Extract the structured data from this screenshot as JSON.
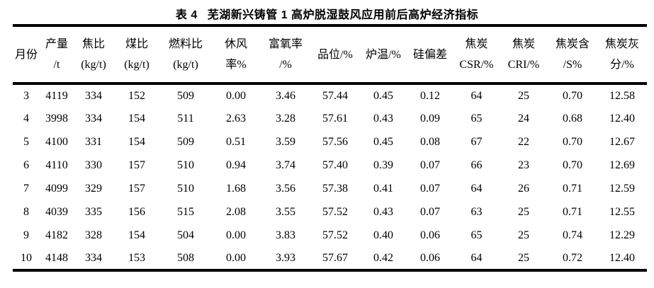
{
  "caption": {
    "label": "表 4",
    "title": "芜湖新兴铸管 1 高炉脱湿鼓风应用前后高炉经济指标"
  },
  "table": {
    "columns": [
      {
        "line1": "月份",
        "line2": ""
      },
      {
        "line1": "产量",
        "line2": "/t"
      },
      {
        "line1": "焦比",
        "line2": "(kg/t)"
      },
      {
        "line1": "煤比",
        "line2": "(kg/t)"
      },
      {
        "line1": "燃料比",
        "line2": "(kg/t)"
      },
      {
        "line1": "休风",
        "line2": "率%"
      },
      {
        "line1": "富氧率",
        "line2": "/%"
      },
      {
        "line1": "品位/%",
        "line2": ""
      },
      {
        "line1": "炉温/%",
        "line2": ""
      },
      {
        "line1": "硅偏差",
        "line2": ""
      },
      {
        "line1": "焦炭",
        "line2": "CSR/%"
      },
      {
        "line1": "焦炭",
        "line2": "CRI/%"
      },
      {
        "line1": "焦炭含",
        "line2": "/S%"
      },
      {
        "line1": "焦炭灰",
        "line2": "分/%"
      }
    ],
    "rows": [
      [
        "3",
        "4119",
        "334",
        "152",
        "509",
        "0.00",
        "3.46",
        "57.44",
        "0.45",
        "0.12",
        "64",
        "25",
        "0.70",
        "12.58"
      ],
      [
        "4",
        "3998",
        "334",
        "154",
        "511",
        "2.63",
        "3.28",
        "57.61",
        "0.43",
        "0.09",
        "65",
        "24",
        "0.68",
        "12.40"
      ],
      [
        "5",
        "4100",
        "331",
        "154",
        "509",
        "0.51",
        "3.59",
        "57.56",
        "0.45",
        "0.08",
        "67",
        "22",
        "0.70",
        "12.67"
      ],
      [
        "6",
        "4110",
        "330",
        "157",
        "510",
        "0.94",
        "3.74",
        "57.40",
        "0.39",
        "0.07",
        "66",
        "23",
        "0.70",
        "12.69"
      ],
      [
        "7",
        "4099",
        "329",
        "157",
        "510",
        "1.68",
        "3.56",
        "57.38",
        "0.41",
        "0.07",
        "64",
        "26",
        "0.71",
        "12.59"
      ],
      [
        "8",
        "4039",
        "335",
        "156",
        "515",
        "2.08",
        "3.55",
        "57.52",
        "0.43",
        "0.07",
        "63",
        "25",
        "0.71",
        "12.55"
      ],
      [
        "9",
        "4182",
        "328",
        "154",
        "504",
        "0.00",
        "3.83",
        "57.52",
        "0.40",
        "0.06",
        "65",
        "25",
        "0.74",
        "12.29"
      ],
      [
        "10",
        "4148",
        "334",
        "153",
        "508",
        "0.00",
        "3.93",
        "57.67",
        "0.42",
        "0.06",
        "64",
        "25",
        "0.72",
        "12.40"
      ]
    ]
  },
  "colors": {
    "text": "#000000",
    "background": "#ffffff",
    "rule": "#000000"
  }
}
